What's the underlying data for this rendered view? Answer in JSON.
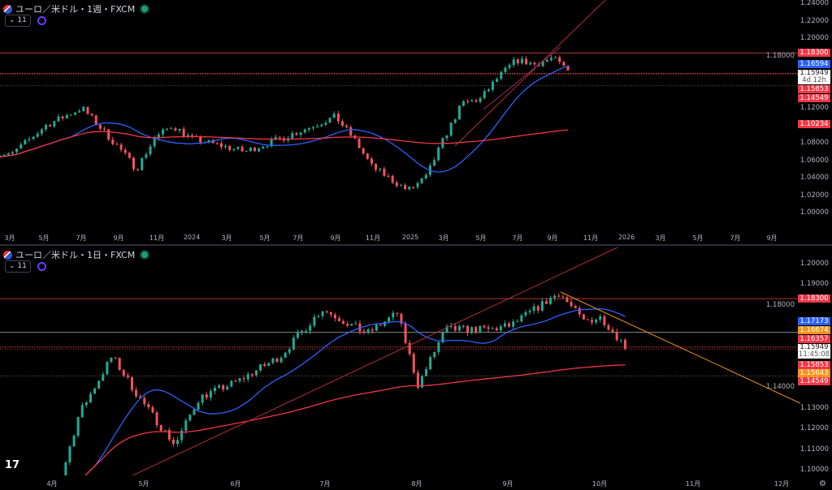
{
  "top_chart": {
    "symbol_title": "ユーロ／米ドル・1週・FXCM",
    "indicator_count": "11",
    "y_ticks": [
      "1.24000",
      "1.22000",
      "1.20000",
      "1.18000",
      "1.12000",
      "1.08000",
      "1.06000",
      "1.04000",
      "1.02000",
      "1.00000"
    ],
    "x_labels": [
      "3月",
      "5月",
      "7月",
      "9月",
      "11月",
      "2024",
      "3月",
      "5月",
      "7月",
      "9月",
      "11月",
      "2025",
      "3月",
      "5月",
      "7月",
      "9月",
      "11月",
      "2026",
      "3月",
      "5月",
      "7月",
      "9月"
    ],
    "price_badges": [
      {
        "value": "1.18300",
        "color": "#f23645"
      },
      {
        "value": "1.16594",
        "color": "#2962ff"
      },
      {
        "value": "1.15949",
        "sub": "4d 12h",
        "color": "#ffffff"
      },
      {
        "value": "1.15853",
        "color": "#f23645"
      },
      {
        "value": "1.14549",
        "color": "#f23645"
      },
      {
        "value": "1.10234",
        "color": "#f23645"
      }
    ]
  },
  "bottom_chart": {
    "symbol_title": "ユーロ／米ドル・1日・FXCM",
    "indicator_count": "11",
    "y_ticks": [
      "1.20000",
      "1.19000",
      "1.18000",
      "1.14000",
      "1.13000",
      "1.12000",
      "1.11000",
      "1.10000"
    ],
    "x_labels": [
      "4月",
      "5月",
      "6月",
      "7月",
      "8月",
      "9月",
      "10月",
      "11月",
      "12月"
    ],
    "price_badges": [
      {
        "value": "1.18300",
        "color": "#f23645"
      },
      {
        "value": "1.17173",
        "color": "#2962ff"
      },
      {
        "value": "1.16674",
        "color": "#f7931a"
      },
      {
        "value": "1.16357",
        "color": "#f23645"
      },
      {
        "value": "1.15949",
        "sub": "11:45:08",
        "color": "#ffffff"
      },
      {
        "value": "1.15853",
        "color": "#f23645"
      },
      {
        "value": "1.15643",
        "color": "#f7931a"
      },
      {
        "value": "1.14549",
        "color": "#f23645"
      }
    ]
  },
  "colors": {
    "bull": "#22ab94",
    "bear": "#f7525f",
    "ma_fast": "#2962ff",
    "ma_slow": "#f23645",
    "trend_orange": "#f7931a"
  },
  "chart_data": [
    {
      "type": "candlestick",
      "timeframe": "weekly",
      "ylim": [
        1.0,
        1.24
      ],
      "approx_closes": [
        [
          "2023-02",
          1.067
        ],
        [
          "2023-03",
          1.065
        ],
        [
          "2023-05",
          1.1
        ],
        [
          "2023-07",
          1.12
        ],
        [
          "2023-09",
          1.075
        ],
        [
          "2023-10",
          1.05
        ],
        [
          "2023-11",
          1.085
        ],
        [
          "2023-12",
          1.1
        ],
        [
          "2024-01",
          1.085
        ],
        [
          "2024-04",
          1.07
        ],
        [
          "2024-06",
          1.085
        ],
        [
          "2024-09",
          1.11
        ],
        [
          "2024-10",
          1.085
        ],
        [
          "2024-11",
          1.053
        ],
        [
          "2025-01",
          1.025
        ],
        [
          "2025-02",
          1.04
        ],
        [
          "2025-03",
          1.085
        ],
        [
          "2025-04",
          1.125
        ],
        [
          "2025-05",
          1.13
        ],
        [
          "2025-06",
          1.155
        ],
        [
          "2025-07",
          1.175
        ],
        [
          "2025-08",
          1.17
        ],
        [
          "2025-09",
          1.177
        ],
        [
          "2025-10",
          1.16
        ]
      ],
      "horizontal_levels": [
        1.183,
        1.1595,
        1.1585,
        1.1455
      ]
    },
    {
      "type": "candlestick",
      "timeframe": "daily",
      "ylim": [
        1.095,
        1.205
      ],
      "approx_closes": [
        [
          "2025-03-20",
          1.09
        ],
        [
          "2025-04-01",
          1.08
        ],
        [
          "2025-04-10",
          1.127
        ],
        [
          "2025-04-21",
          1.155
        ],
        [
          "2025-05-01",
          1.133
        ],
        [
          "2025-05-12",
          1.112
        ],
        [
          "2025-05-20",
          1.135
        ],
        [
          "2025-06-02",
          1.143
        ],
        [
          "2025-06-16",
          1.155
        ],
        [
          "2025-06-30",
          1.178
        ],
        [
          "2025-07-15",
          1.166
        ],
        [
          "2025-07-25",
          1.176
        ],
        [
          "2025-08-01",
          1.141
        ],
        [
          "2025-08-10",
          1.168
        ],
        [
          "2025-08-25",
          1.168
        ],
        [
          "2025-09-01",
          1.17
        ],
        [
          "2025-09-17",
          1.186
        ],
        [
          "2025-09-25",
          1.172
        ],
        [
          "2025-10-01",
          1.174
        ],
        [
          "2025-10-09",
          1.16
        ]
      ],
      "horizontal_levels": [
        1.183,
        1.1667,
        1.1595,
        1.1585,
        1.1455
      ]
    }
  ]
}
